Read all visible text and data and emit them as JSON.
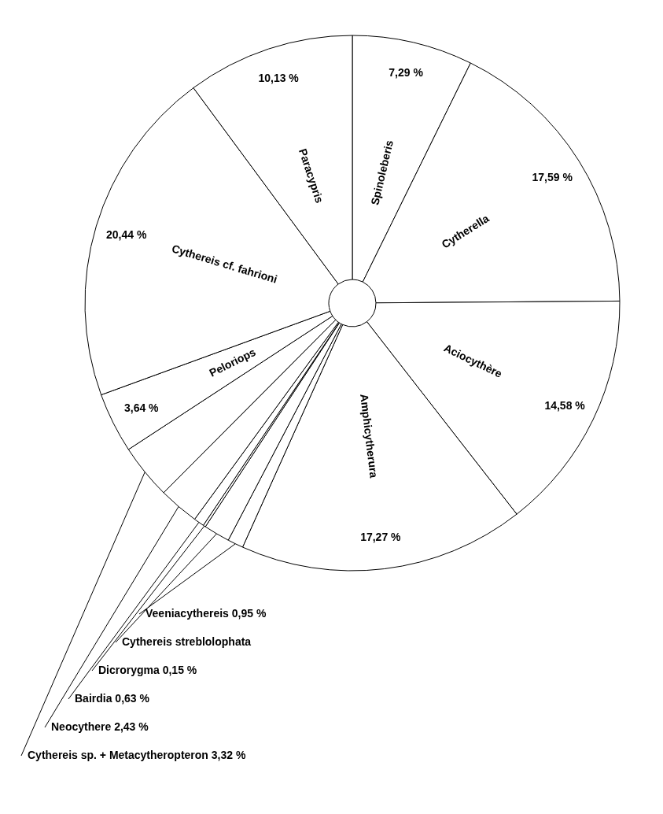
{
  "chart_data": {
    "type": "pie",
    "categories": [
      "Spinoleberis",
      "Cytherella",
      "Aciocythère",
      "Amphicytherura",
      "Veeniacythereis",
      "Cythereis streblolophata",
      "Dicrorygma",
      "Bairdia",
      "Neocythere",
      "Cythereis sp. + Metacytheropteron",
      "Peloriops",
      "Cythereis cf. fahrioni",
      "Paracypris"
    ],
    "values": [
      7.29,
      17.59,
      14.58,
      17.27,
      0.95,
      1.58,
      0.15,
      0.63,
      2.43,
      3.32,
      3.64,
      20.44,
      10.13
    ],
    "value_labels": [
      "7,29 %",
      "17,59 %",
      "14,58 %",
      "17,27 %",
      "0,95 %",
      null,
      "0,15 %",
      "0,63 %",
      "2,43 %",
      "3,32 %",
      "3,64 %",
      "20,44 %",
      "10,13 %"
    ],
    "colors": [
      "#ffffff",
      "#ffffff",
      "#ffffff",
      "#ffffff",
      "#ffffff",
      "#ffffff",
      "#ffffff",
      "#ffffff",
      "#ffffff",
      "#ffffff",
      "#ffffff",
      "#ffffff",
      "#ffffff"
    ]
  }
}
